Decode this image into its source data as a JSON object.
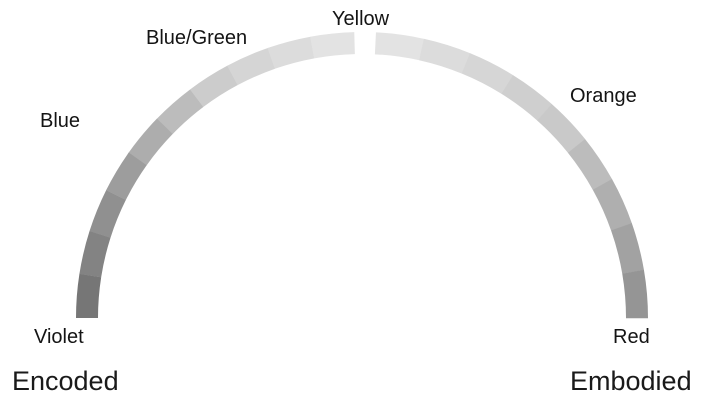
{
  "spectrum": {
    "labels": {
      "violet": "Violet",
      "blue": "Blue",
      "blue_green": "Blue/Green",
      "yellow": "Yellow",
      "orange": "Orange",
      "red": "Red"
    },
    "ends": {
      "left": "Encoded",
      "right": "Embodied"
    },
    "colors": {
      "violet": "#707070",
      "blue": "#9a9a9a",
      "blue_green": "#cfcfcf",
      "yellow": "#e6e6e6",
      "orange": "#c9c9c9",
      "red": "#8e8e8e"
    }
  }
}
